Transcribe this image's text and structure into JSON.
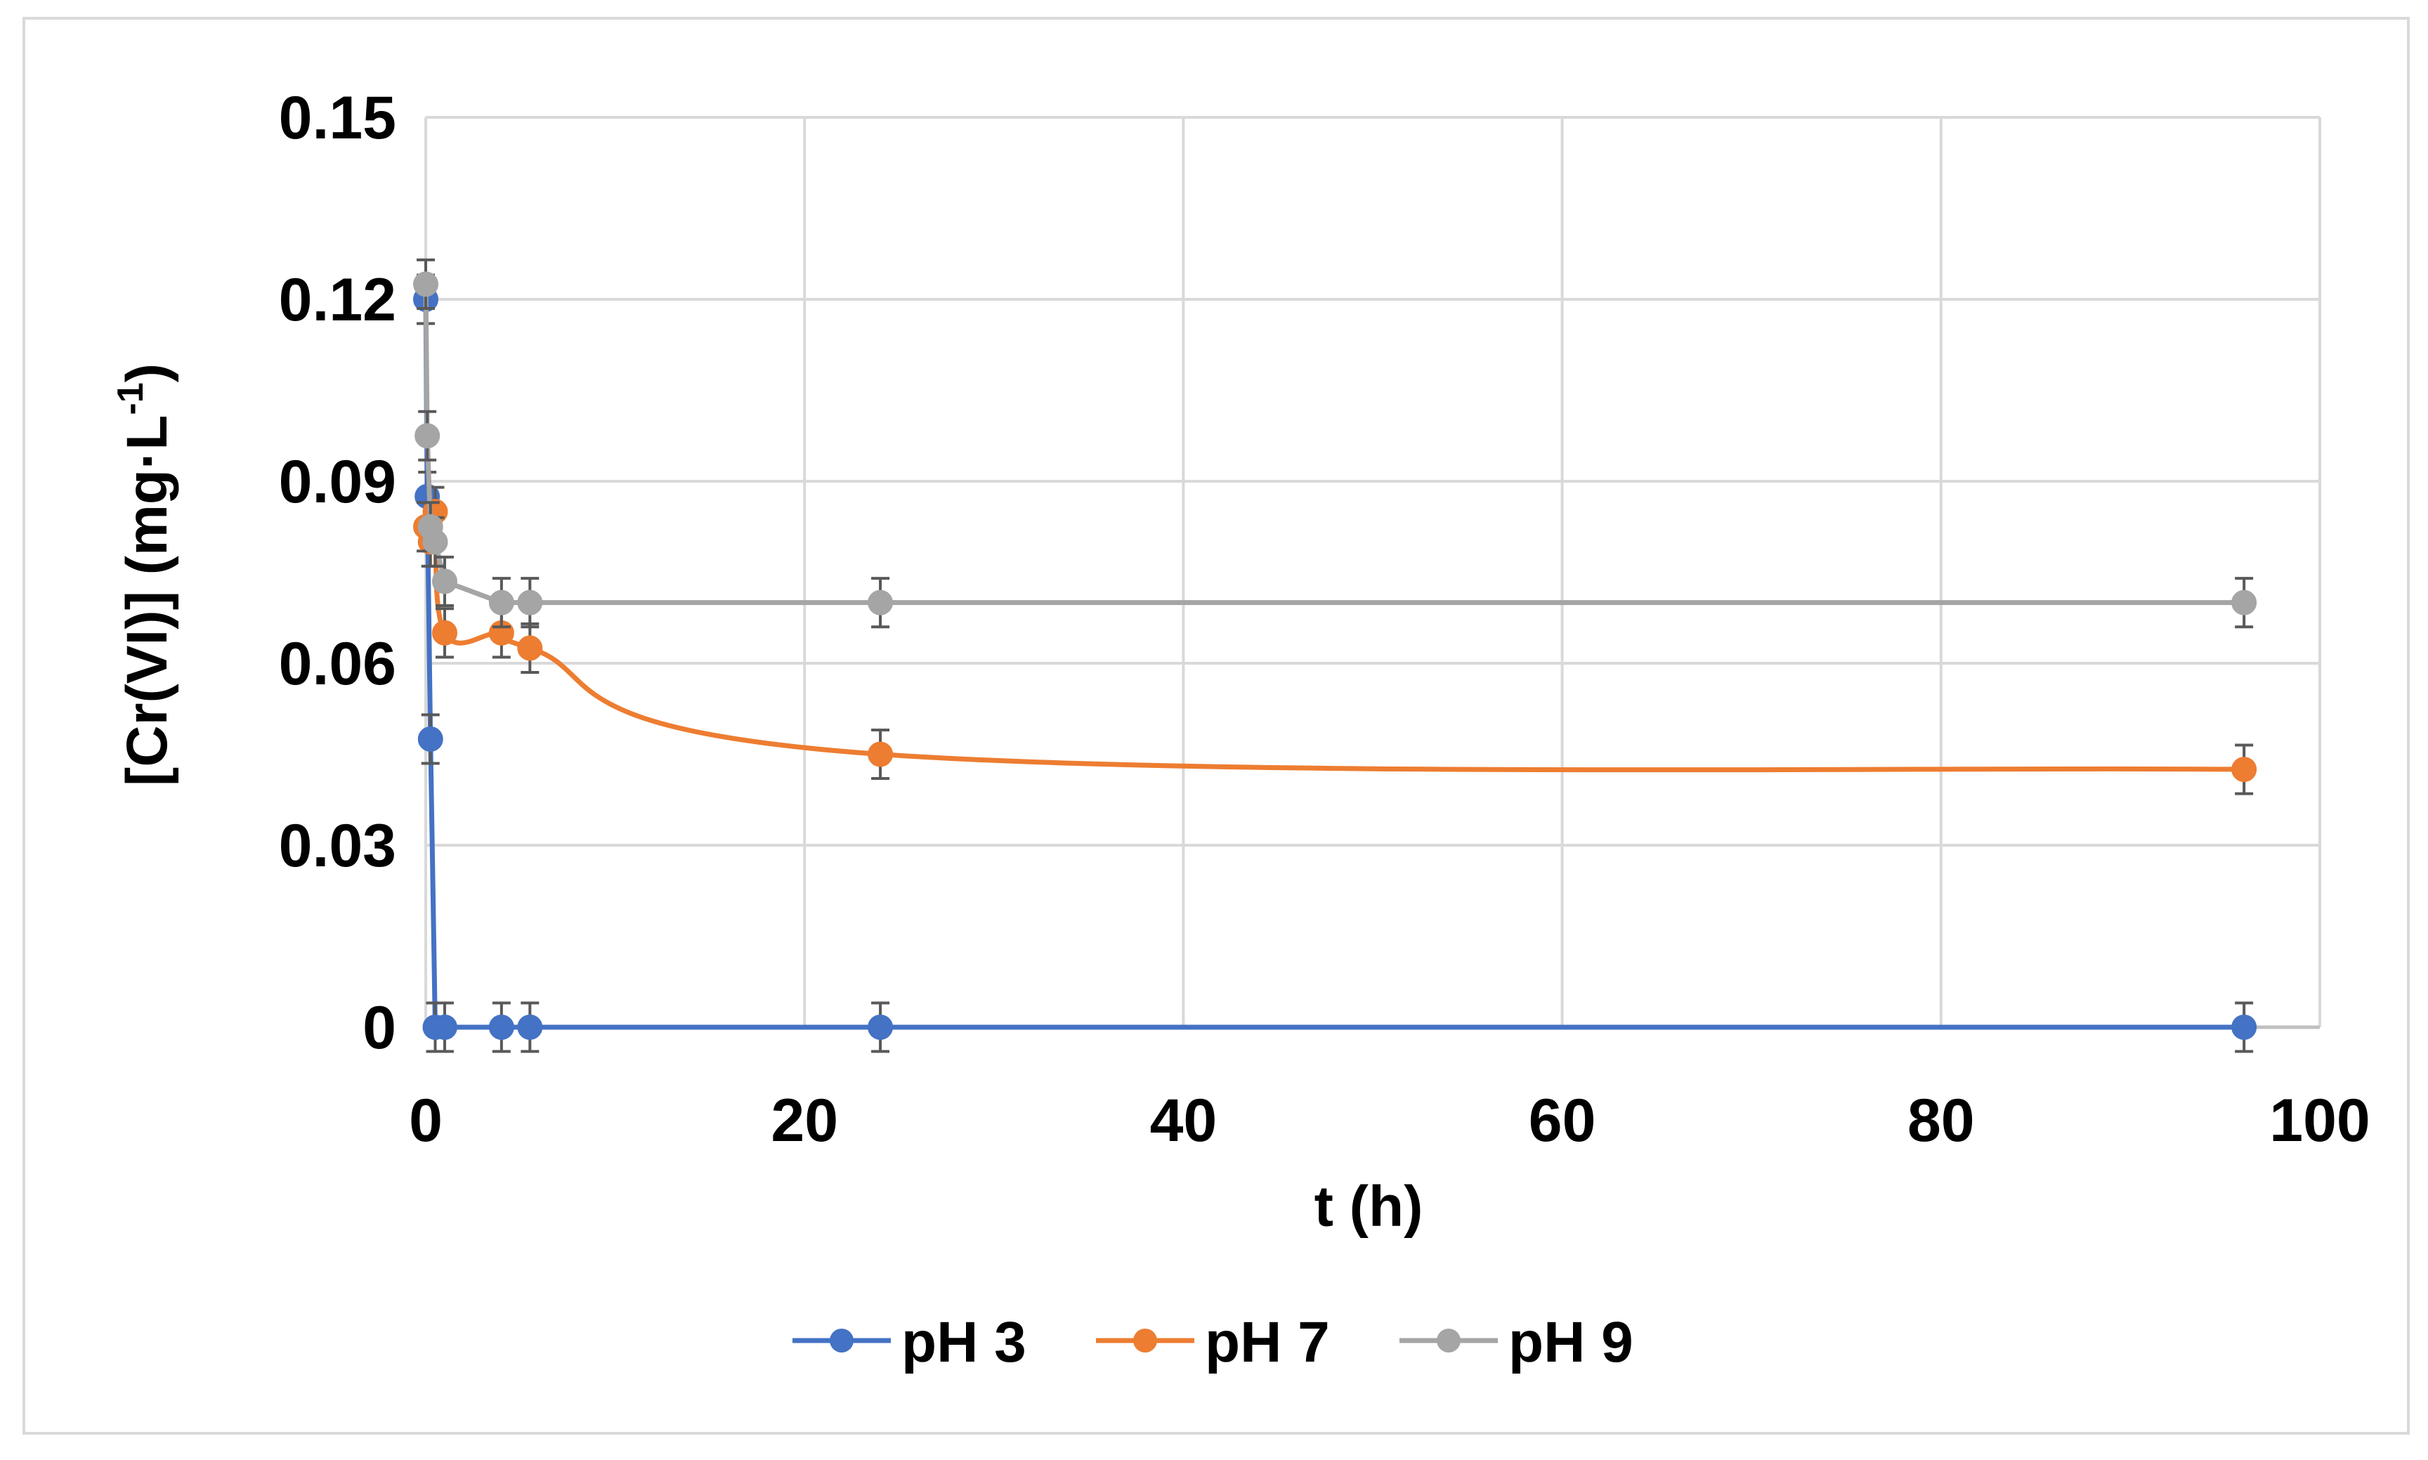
{
  "chart_data": {
    "type": "line",
    "title": "",
    "xlabel": "t (h)",
    "ylabel_main": "[Cr(VI)] (mg·L",
    "ylabel_sup": "-1",
    "ylabel_end": ")",
    "xlim": [
      0,
      100
    ],
    "ylim": [
      0,
      0.15
    ],
    "x_ticks": [
      0,
      20,
      40,
      60,
      80,
      100
    ],
    "x_tick_labels": [
      "0",
      "20",
      "40",
      "60",
      "80",
      "100"
    ],
    "y_ticks": [
      0,
      0.03,
      0.06,
      0.09,
      0.12,
      0.15
    ],
    "y_tick_labels": [
      "0",
      "0.03",
      "0.06",
      "0.09",
      "0.12",
      "0.15"
    ],
    "grid": true,
    "legend_position": "bottom",
    "error_bar": 0.004,
    "series": [
      {
        "name": "pH 3",
        "color": "#4472C4",
        "smooth": false,
        "x": [
          0,
          0.08,
          0.25,
          0.5,
          1,
          4,
          5.5,
          24,
          96
        ],
        "y": [
          0.12,
          0.0875,
          0.0475,
          0,
          0,
          0,
          0,
          0,
          0
        ]
      },
      {
        "name": "pH 7",
        "color": "#ED7D31",
        "smooth": true,
        "x": [
          0,
          0.25,
          0.5,
          1,
          4,
          5.5,
          24,
          96
        ],
        "y": [
          0.0825,
          0.08,
          0.085,
          0.065,
          0.065,
          0.0625,
          0.045,
          0.0425
        ]
      },
      {
        "name": "pH 9",
        "color": "#A5A5A5",
        "smooth": false,
        "x": [
          0,
          0.08,
          0.25,
          0.5,
          1,
          4,
          5.5,
          24,
          96
        ],
        "y": [
          0.1225,
          0.0975,
          0.0825,
          0.08,
          0.0735,
          0.07,
          0.07,
          0.07,
          0.07
        ]
      }
    ]
  }
}
